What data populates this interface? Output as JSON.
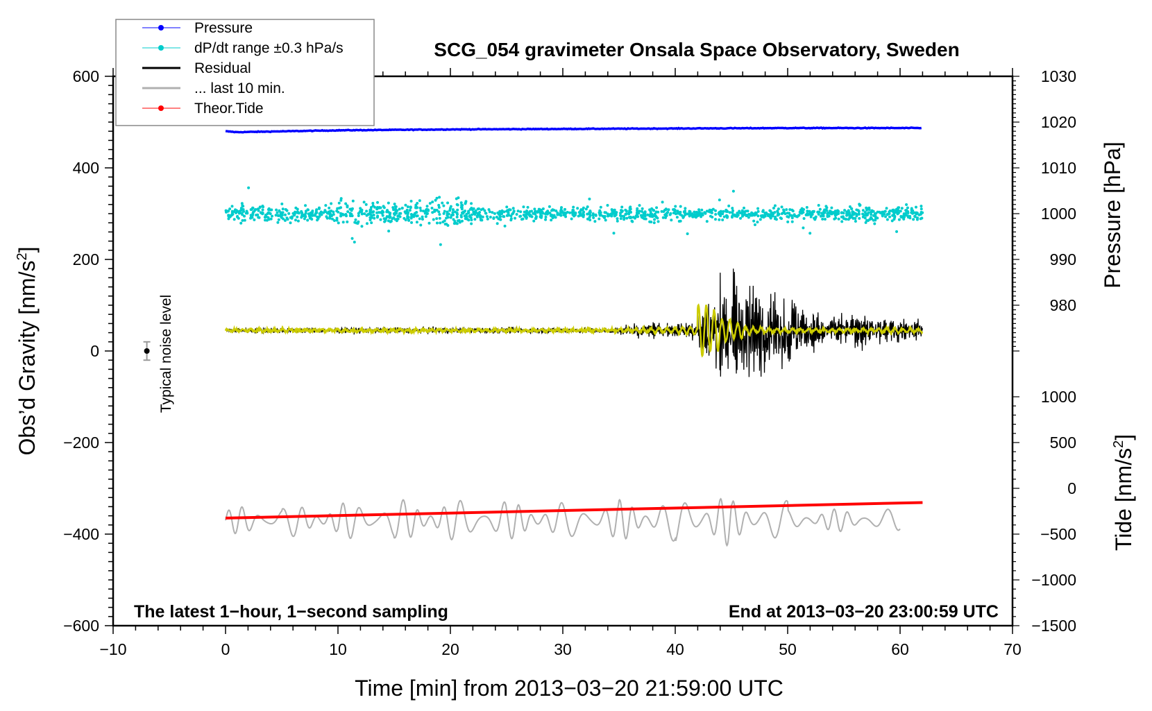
{
  "chart_data": {
    "type": "line",
    "title": "SCG_054 gravimeter Onsala Space Observatory, Sweden",
    "xlabel": "Time [min] from 2013−03−20 21:59:00 UTC",
    "ylabel": "Obs’d Gravity [nm/s",
    "ylabel_sup": "2",
    "ylabel_end": "]",
    "y2label_pressure": "Pressure [hPa]",
    "y2label_tide": "Tide [nm/s",
    "y2label_tide_sup": "2",
    "y2label_tide_end": "]",
    "note_left": "The latest 1−hour, 1−second sampling",
    "note_right": "End at 2013−03−20 23:00:59 UTC",
    "noise_label": "Typical noise level",
    "xlim": [
      -10,
      70
    ],
    "ylim": [
      -600,
      600
    ],
    "xticks": [
      -10,
      0,
      10,
      20,
      30,
      40,
      50,
      60,
      70
    ],
    "xtick_labels": [
      "−10",
      "0",
      "10",
      "20",
      "30",
      "40",
      "50",
      "60",
      "70"
    ],
    "yticks": [
      -600,
      -400,
      -200,
      0,
      200,
      400,
      600
    ],
    "ytick_labels": [
      "−600",
      "−400",
      "−200",
      "0",
      "200",
      "400",
      "600"
    ],
    "pressure_axis": {
      "ticks": [
        980,
        990,
        1000,
        1010,
        1020,
        1030
      ],
      "labels": [
        "980",
        "990",
        "1000",
        "1010",
        "1020",
        "1030"
      ],
      "range": [
        970,
        1030
      ]
    },
    "tide_axis": {
      "ticks": [
        -1500,
        -1000,
        -500,
        0,
        500,
        1000
      ],
      "labels": [
        "−1500",
        "−1000",
        "−500",
        "0",
        "500",
        "1000"
      ],
      "range": [
        -1500,
        1000
      ]
    },
    "legend": {
      "placement": "top-left",
      "entries": [
        {
          "label": "Pressure",
          "color": "#0000ff",
          "marker": true
        },
        {
          "label": "dP/dt range ±0.3 hPa/s",
          "color": "#00cccc",
          "marker": true
        },
        {
          "label": "Residual",
          "color": "#000000",
          "marker": false
        },
        {
          "label": "... last 10 min.",
          "color": "#b0b0b0",
          "marker": false
        },
        {
          "label": "Theor.Tide",
          "color": "#ff0000",
          "marker": true
        }
      ]
    },
    "series": {
      "pressure": {
        "unit": "hPa",
        "t": [
          0,
          1,
          10,
          20,
          30,
          40,
          50,
          62
        ],
        "values": [
          1018.0,
          1017.8,
          1018.2,
          1018.4,
          1018.5,
          1018.6,
          1018.7,
          1018.7
        ],
        "color": "#0000ff"
      },
      "dpdt": {
        "unit": "hPa",
        "center": 1000,
        "t_range": [
          0,
          62
        ],
        "spread_per_2min": [
          1.2,
          1.5,
          1.4,
          1.0,
          1.6,
          2.2,
          2.0,
          1.6,
          2.0,
          2.2,
          2.0,
          1.5,
          1.2,
          1.0,
          1.0,
          1.0,
          1.3,
          1.2,
          1.5,
          1.4,
          1.3,
          1.2,
          1.0,
          1.3,
          1.0,
          1.2,
          1.0,
          1.3,
          1.8,
          1.5,
          1.2
        ],
        "color": "#00cccc"
      },
      "residual": {
        "unit": "nm/s2",
        "baseline": 45,
        "t_range": [
          0,
          62
        ],
        "envelope_per_min": [
          6,
          6,
          6,
          6,
          6,
          6,
          6,
          6,
          6,
          6,
          6,
          6,
          6,
          6,
          6,
          6,
          6,
          6,
          6,
          6,
          6,
          6,
          6,
          6,
          6,
          6,
          6,
          6,
          6,
          6,
          6,
          6,
          6,
          6,
          8,
          14,
          20,
          20,
          22,
          24,
          30,
          35,
          90,
          120,
          150,
          185,
          170,
          150,
          120,
          115,
          100,
          65,
          55,
          50,
          50,
          45,
          55,
          40,
          35,
          35,
          30,
          30,
          30
        ],
        "color": "#000000"
      },
      "residual_filtered": {
        "unit": "nm/s2",
        "baseline": 45,
        "envelope_per_min": [
          3,
          3,
          3,
          3,
          3,
          3,
          3,
          3,
          3,
          3,
          3,
          3,
          3,
          3,
          3,
          3,
          3,
          3,
          3,
          3,
          3,
          3,
          3,
          3,
          3,
          3,
          3,
          3,
          3,
          3,
          3,
          3,
          3,
          3,
          3,
          4,
          5,
          5,
          6,
          6,
          8,
          10,
          70,
          55,
          30,
          20,
          10,
          6,
          5,
          5,
          4,
          4,
          4,
          4,
          4,
          4,
          4,
          4,
          6,
          6,
          5,
          5,
          5
        ],
        "color": "#cccc00"
      },
      "last_10_min": {
        "unit": "nm/s2",
        "baseline": -370,
        "t_range": [
          0,
          60
        ],
        "envelope_per_5min": [
          30,
          35,
          40,
          45,
          45,
          40,
          40,
          45,
          55,
          45,
          25,
          25
        ],
        "color": "#b0b0b0"
      },
      "tide": {
        "unit": "nm/s2",
        "t": [
          0,
          62
        ],
        "values": [
          -325,
          -155
        ],
        "color": "#ff0000"
      }
    },
    "noise_bar": {
      "x": -7,
      "y": 0,
      "err": 20
    }
  }
}
